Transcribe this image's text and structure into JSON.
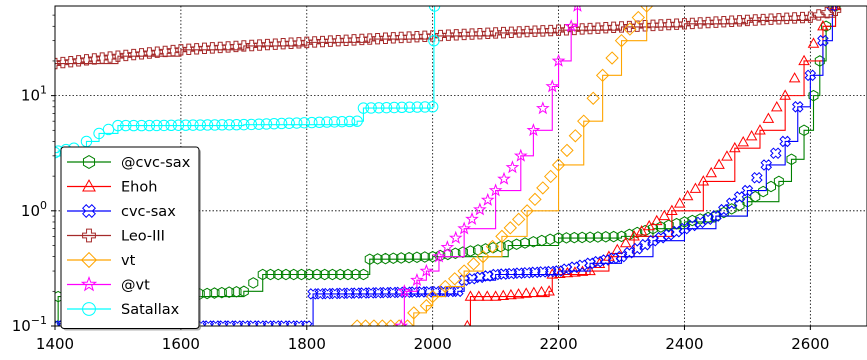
{
  "chart_data": {
    "type": "line",
    "title": "",
    "xlabel": "",
    "ylabel": "",
    "xlim": [
      1400,
      2690
    ],
    "ylim": [
      0.1,
      60
    ],
    "yscale": "log",
    "grid": true,
    "legend_position": "lower-left",
    "x_ticks": [
      {
        "value": 1400,
        "label": "1400"
      },
      {
        "value": 1600,
        "label": "1600"
      },
      {
        "value": 1800,
        "label": "1800"
      },
      {
        "value": 2000,
        "label": "2000"
      },
      {
        "value": 2200,
        "label": "2200"
      },
      {
        "value": 2400,
        "label": "2400"
      },
      {
        "value": 2600,
        "label": "2600"
      }
    ],
    "y_ticks": [
      {
        "value": 0.1,
        "base": "10",
        "exp": "−1"
      },
      {
        "value": 1,
        "base": "10",
        "exp": "0"
      },
      {
        "value": 10,
        "base": "10",
        "exp": "1"
      }
    ],
    "series": [
      {
        "name": "@cvc-sax",
        "color": "#008000",
        "marker": "hexagon",
        "x": [
          1400,
          1405,
          1560,
          1700,
          1730,
          1890,
          1900,
          2000,
          2120,
          2200,
          2300,
          2350,
          2400,
          2450,
          2500,
          2550,
          2570,
          2590,
          2605,
          2615,
          2625,
          2640
        ],
        "y": [
          0.1,
          0.18,
          0.18,
          0.2,
          0.28,
          0.28,
          0.38,
          0.4,
          0.5,
          0.58,
          0.6,
          0.7,
          0.8,
          0.9,
          1.2,
          1.8,
          2.8,
          5,
          10,
          20,
          40,
          60
        ]
      },
      {
        "name": "Ehoh",
        "color": "#ff0000",
        "marker": "triangle",
        "x": [
          2055,
          2060,
          2100,
          2185,
          2190,
          2250,
          2280,
          2320,
          2380,
          2430,
          2480,
          2520,
          2560,
          2590,
          2620,
          2640
        ],
        "y": [
          0.1,
          0.18,
          0.18,
          0.2,
          0.28,
          0.3,
          0.4,
          0.6,
          1.0,
          1.8,
          3.5,
          5,
          10,
          20,
          40,
          60
        ]
      },
      {
        "name": "cvc-sax",
        "color": "#0000ff",
        "marker": "x",
        "x": [
          1400,
          1690,
          1800,
          1810,
          2040,
          2050,
          2100,
          2200,
          2250,
          2300,
          2350,
          2400,
          2450,
          2500,
          2530,
          2560,
          2580,
          2600,
          2620,
          2635
        ],
        "y": [
          0.1,
          0.1,
          0.1,
          0.19,
          0.2,
          0.25,
          0.28,
          0.3,
          0.35,
          0.4,
          0.55,
          0.7,
          0.9,
          1.5,
          2.5,
          4,
          8,
          15,
          30,
          60
        ]
      },
      {
        "name": "Leo-III",
        "color": "#a52a2a",
        "marker": "plus",
        "x": [
          1400,
          1500,
          1600,
          1700,
          1800,
          1900,
          2000,
          2100,
          2200,
          2300,
          2400,
          2500,
          2600,
          2640
        ],
        "y": [
          19,
          22,
          25,
          27,
          29,
          31,
          33,
          35,
          37,
          39.5,
          42,
          45,
          48,
          55
        ]
      },
      {
        "name": "vt",
        "color": "#ffa500",
        "marker": "diamond",
        "x": [
          1880,
          1960,
          1970,
          1990,
          2000,
          2020,
          2050,
          2080,
          2110,
          2150,
          2200,
          2240,
          2270,
          2300,
          2340
        ],
        "y": [
          0.1,
          0.1,
          0.13,
          0.15,
          0.18,
          0.22,
          0.3,
          0.4,
          0.6,
          1.0,
          2.5,
          6,
          15,
          30,
          60
        ]
      },
      {
        "name": "@vt",
        "color": "#ff00ff",
        "marker": "star",
        "x": [
          1950,
          1955,
          1975,
          1990,
          2010,
          2050,
          2100,
          2140,
          2160,
          2190,
          2200,
          2220,
          2230
        ],
        "y": [
          0.1,
          0.2,
          0.25,
          0.3,
          0.4,
          0.7,
          1.5,
          3,
          5,
          12,
          20,
          40,
          60
        ]
      },
      {
        "name": "Satallax",
        "color": "#00ffff",
        "marker": "circle",
        "x": [
          1400,
          1405,
          1430,
          1450,
          1470,
          1500,
          1550,
          1700,
          1880,
          1890,
          2000,
          2002,
          2003
        ],
        "y": [
          3.2,
          3.3,
          3.5,
          4.0,
          4.7,
          5.5,
          5.5,
          5.6,
          6.0,
          7.8,
          8.0,
          30,
          60
        ]
      }
    ]
  }
}
